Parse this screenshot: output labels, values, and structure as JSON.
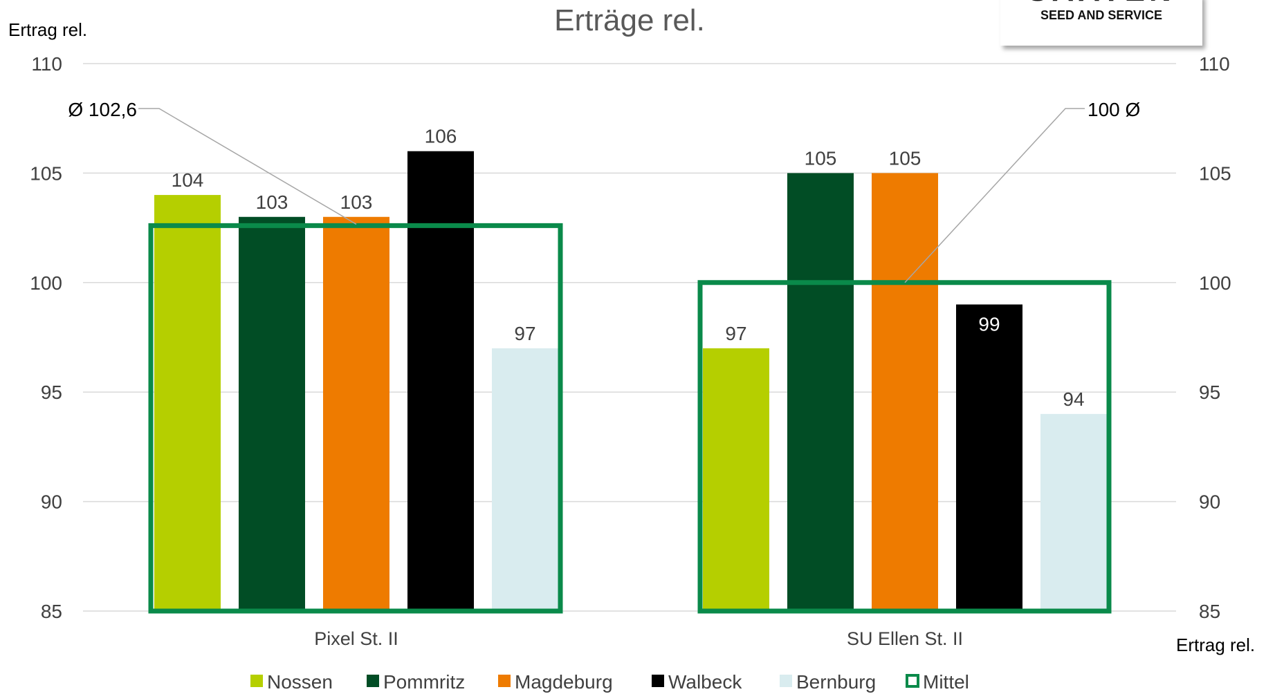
{
  "logo": {
    "word": "SAATEN",
    "tagline": "SEED AND SERVICE"
  },
  "colors": {
    "Nossen": "#b5cf00",
    "Pommritz": "#014d25",
    "Magdeburg": "#ee7b00",
    "Walbeck": "#000000",
    "Bernburg": "#d9ecef",
    "Mittel": "#0a8a4a",
    "grid": "#d9d9d9",
    "text": "#404040"
  },
  "chart_data": {
    "type": "bar",
    "title": "Erträge rel.",
    "ylabel_left": "Ertrag rel.",
    "ylabel_right": "Ertrag rel.",
    "ylim": [
      85,
      110
    ],
    "yticks": [
      85,
      90,
      95,
      100,
      105,
      110
    ],
    "grid": true,
    "legend_position": "bottom",
    "categories": [
      "Pixel St. II",
      "SU Ellen St. II"
    ],
    "series": [
      {
        "name": "Nossen",
        "values": [
          104,
          97
        ]
      },
      {
        "name": "Pommritz",
        "values": [
          103,
          105
        ]
      },
      {
        "name": "Magdeburg",
        "values": [
          103,
          105
        ]
      },
      {
        "name": "Walbeck",
        "values": [
          106,
          99
        ]
      },
      {
        "name": "Bernburg",
        "values": [
          97,
          94
        ]
      }
    ],
    "mean_series": {
      "name": "Mittel",
      "values": [
        102.6,
        100
      ]
    },
    "annotations": [
      "Ø 102,6",
      "100 Ø"
    ]
  }
}
